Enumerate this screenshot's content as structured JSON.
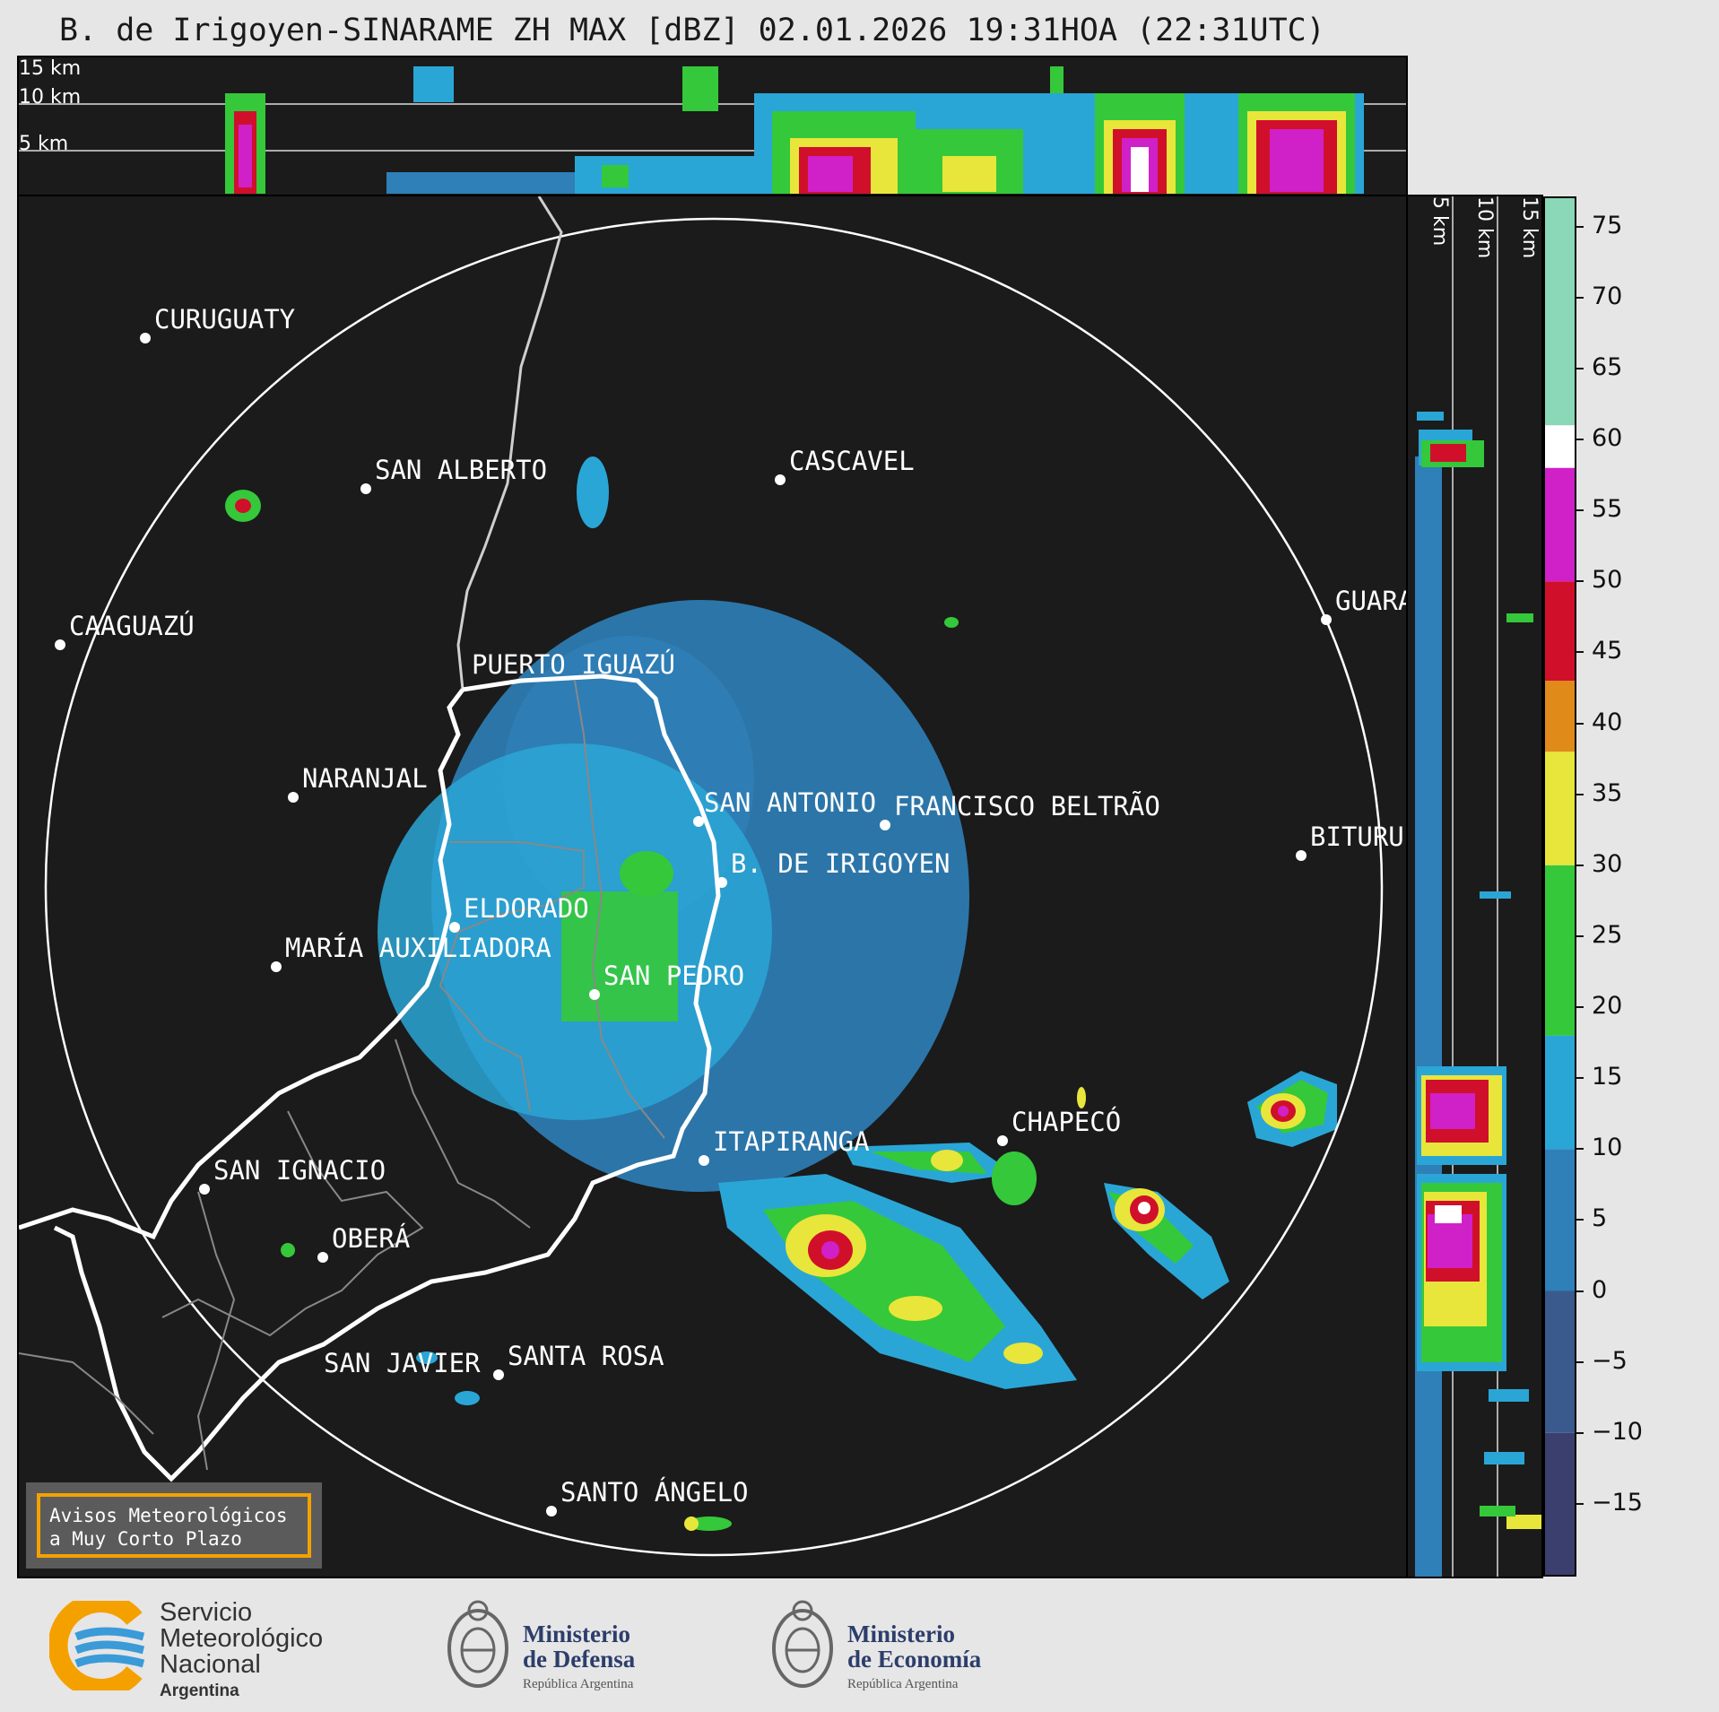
{
  "title": "B. de Irigoyen-SINARAME ZH MAX [dBZ] 02.01.2026 19:31HOA (22:31UTC)",
  "top_axis_labels": [
    "15 km",
    "10 km",
    "5 km"
  ],
  "side_axis_labels": [
    "5 km",
    "10 km",
    "15 km"
  ],
  "cities": [
    {
      "name": "CURUGUATY"
    },
    {
      "name": "SAN ALBERTO"
    },
    {
      "name": "CASCAVEL"
    },
    {
      "name": "CAAGUAZÚ"
    },
    {
      "name": "GUARA"
    },
    {
      "name": "PUERTO IGUAZÚ"
    },
    {
      "name": "NARANJAL"
    },
    {
      "name": "SAN ANTONIO"
    },
    {
      "name": "FRANCISCO BELTRÃO"
    },
    {
      "name": "B. DE IRIGOYEN"
    },
    {
      "name": "BITURU"
    },
    {
      "name": "ELDORADO"
    },
    {
      "name": "MARÍA AUXILIADORA"
    },
    {
      "name": "SAN PEDRO"
    },
    {
      "name": "CHAPECÓ"
    },
    {
      "name": "ITAPIRANGA"
    },
    {
      "name": "SAN IGNACIO"
    },
    {
      "name": "OBERÁ"
    },
    {
      "name": "SAN JAVIER"
    },
    {
      "name": "SANTA ROSA"
    },
    {
      "name": "SANTO ÁNGELO"
    }
  ],
  "warning_box": {
    "line1": "Avisos Meteorológicos",
    "line2": "a Muy Corto Plazo"
  },
  "colorbar": {
    "unit": "dBZ",
    "min": -20,
    "max": 77,
    "ticks": [
      "75",
      "70",
      "65",
      "60",
      "55",
      "50",
      "45",
      "40",
      "35",
      "30",
      "25",
      "20",
      "15",
      "10",
      "5",
      "0",
      "−5",
      "−10",
      "−15"
    ],
    "stops": [
      {
        "from": -20,
        "to": -10,
        "color": "#3b3f6e"
      },
      {
        "from": -10,
        "to": 0,
        "color": "#3a5a8e"
      },
      {
        "from": 0,
        "to": 10,
        "color": "#2f7fb8"
      },
      {
        "from": 10,
        "to": 18,
        "color": "#2aa6d6"
      },
      {
        "from": 18,
        "to": 30,
        "color": "#35c83a"
      },
      {
        "from": 30,
        "to": 38,
        "color": "#e8e63a"
      },
      {
        "from": 38,
        "to": 43,
        "color": "#e08a1a"
      },
      {
        "from": 43,
        "to": 50,
        "color": "#d0102a"
      },
      {
        "from": 50,
        "to": 58,
        "color": "#d020c8"
      },
      {
        "from": 58,
        "to": 61,
        "color": "#ffffff"
      },
      {
        "from": 61,
        "to": 77,
        "color": "#8ad8b8"
      }
    ]
  },
  "footer": {
    "smn_line1": "Servicio",
    "smn_line2": "Meteorológico",
    "smn_line3": "Nacional",
    "smn_line4": "Argentina",
    "def_line1": "Ministerio",
    "def_line2": "de Defensa",
    "def_line3": "República Argentina",
    "eco_line1": "Ministerio",
    "eco_line2": "de Economía",
    "eco_line3": "República Argentina"
  }
}
